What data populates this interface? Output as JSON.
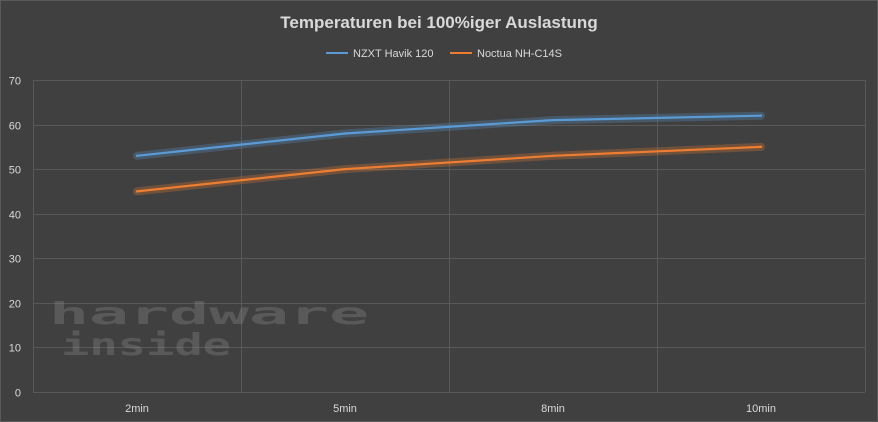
{
  "chart_data": {
    "type": "line",
    "title": "Temperaturen bei 100%iger Auslastung",
    "categories": [
      "2min",
      "5min",
      "8min",
      "10min"
    ],
    "series": [
      {
        "name": "NZXT Havik 120",
        "color": "#5b9bd5",
        "values": [
          53,
          58,
          61,
          62
        ]
      },
      {
        "name": "Noctua NH-C14S",
        "color": "#ed7d31",
        "values": [
          45,
          50,
          53,
          55
        ]
      }
    ],
    "ylim": [
      0,
      70
    ],
    "yticks": [
      0,
      10,
      20,
      30,
      40,
      50,
      60,
      70
    ],
    "grid": true,
    "legend_position": "top-center"
  },
  "watermark": {
    "line1": "hardware",
    "line2": "inside"
  }
}
